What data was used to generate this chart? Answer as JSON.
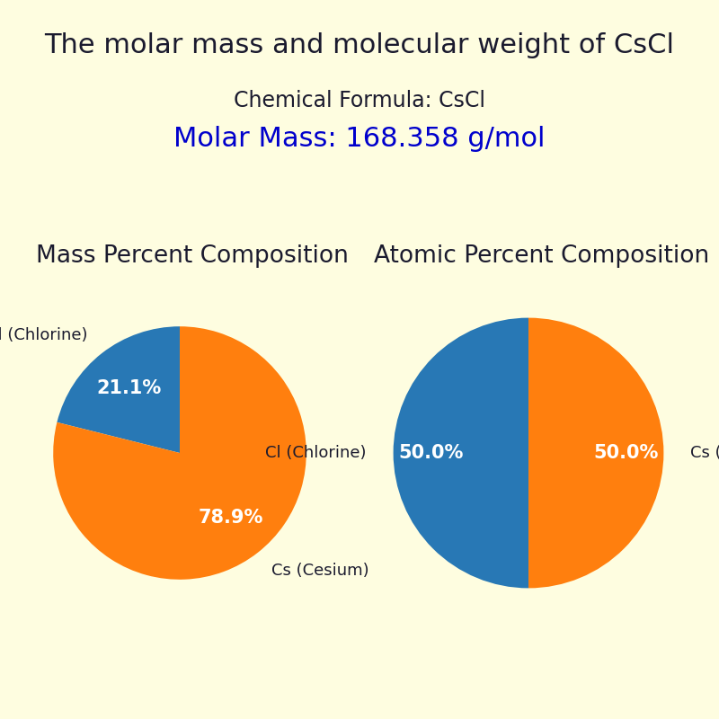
{
  "title": "The molar mass and molecular weight of CsCl",
  "chemical_formula": "Chemical Formula: CsCl",
  "molar_mass_text": "Molar Mass: 168.358 g/mol",
  "background_color": "#FEFDE0",
  "title_fontsize": 22,
  "formula_fontsize": 17,
  "molar_mass_fontsize": 22,
  "molar_mass_color": "#0000CC",
  "text_color": "#1a1a2e",
  "mass_percent_title": "Mass Percent Composition",
  "atomic_percent_title": "Atomic Percent Composition",
  "mass_labels": [
    "Cl (Chlorine)",
    "Cs (Cesium)"
  ],
  "mass_values": [
    21.1,
    78.9
  ],
  "atomic_labels": [
    "Cl (Chlorine)",
    "Cs (Cesium)"
  ],
  "atomic_values": [
    50.0,
    50.0
  ],
  "colors": [
    "#2878b5",
    "#FF7F0E"
  ],
  "pie_fontsize": 15,
  "label_fontsize": 13,
  "section_title_fontsize": 19
}
